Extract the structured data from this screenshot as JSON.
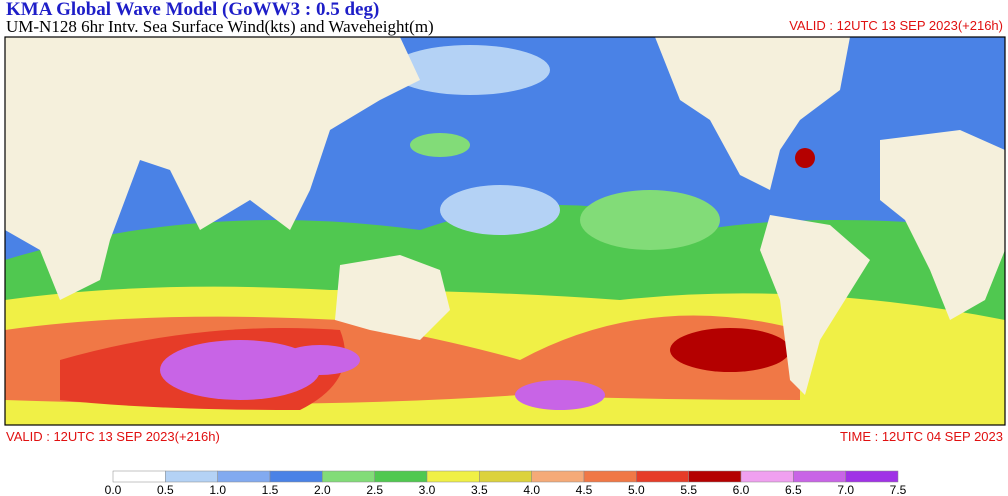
{
  "header": {
    "title": "KMA  Global Wave Model (GoWW3 : 0.5 deg)",
    "subtitle": "UM-N128  6hr Intv. Sea Surface Wind(kts) and Waveheight(m)",
    "valid_top": "VALID : 12UTC 13 SEP 2023(+216h)"
  },
  "footer": {
    "valid": "VALID : 12UTC 13 SEP 2023(+216h)",
    "time": "TIME : 12UTC 04 SEP 2023"
  },
  "legend": {
    "ticks": [
      {
        "value": 0,
        "label": "0.0"
      },
      {
        "value": 0.5,
        "label": "0.5"
      },
      {
        "value": 1,
        "label": "1.0"
      },
      {
        "value": 1.5,
        "label": "1.5"
      },
      {
        "value": 2,
        "label": "2.0"
      },
      {
        "value": 2.5,
        "label": "2.5"
      },
      {
        "value": 3,
        "label": "3.0"
      },
      {
        "value": 3.5,
        "label": "3.5"
      },
      {
        "value": 4,
        "label": "4.0"
      },
      {
        "value": 4.5,
        "label": "4.5"
      },
      {
        "value": 5,
        "label": "5.0"
      },
      {
        "value": 5.5,
        "label": "5.5"
      },
      {
        "value": 6,
        "label": "6.0"
      },
      {
        "value": 6.5,
        "label": "6.5"
      },
      {
        "value": 7,
        "label": "7.0"
      },
      {
        "value": 7.5,
        "label": "7.5"
      }
    ],
    "colors": [
      "#ffffff",
      "#b4d2f5",
      "#82aaf0",
      "#4a82e6",
      "#82dc78",
      "#50c850",
      "#f0f046",
      "#dcd23c",
      "#f5aa78",
      "#f07846",
      "#e63c28",
      "#b40000",
      "#f0a0f0",
      "#c864e6",
      "#a032e6"
    ]
  }
}
